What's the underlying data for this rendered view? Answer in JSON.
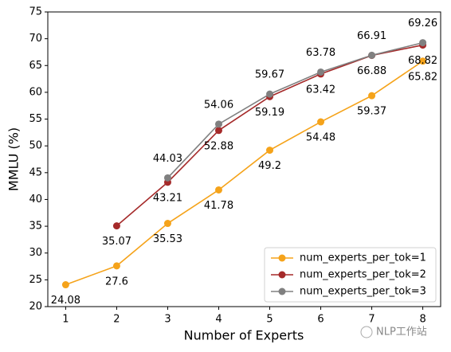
{
  "chart_data": {
    "type": "line",
    "xlabel": "Number of Experts",
    "ylabel": "MMLU (%)",
    "xlim": [
      0.65,
      8.35
    ],
    "ylim": [
      20,
      75
    ],
    "xticks": [
      1,
      2,
      3,
      4,
      5,
      6,
      7,
      8
    ],
    "yticks": [
      20,
      25,
      30,
      35,
      40,
      45,
      50,
      55,
      60,
      65,
      70,
      75
    ],
    "legend": "lower right",
    "series": [
      {
        "name": "num_experts_per_tok=1",
        "color": "#f5a31a",
        "label_side": "below",
        "x": [
          1,
          2,
          3,
          4,
          5,
          6,
          7,
          8
        ],
        "values": [
          24.08,
          27.6,
          35.53,
          41.78,
          49.2,
          54.48,
          59.37,
          65.82
        ]
      },
      {
        "name": "num_experts_per_tok=2",
        "color": "#a52a2a",
        "label_side": "below",
        "x": [
          2,
          3,
          4,
          5,
          6,
          7,
          8
        ],
        "values": [
          35.07,
          43.21,
          52.88,
          59.19,
          63.42,
          66.88,
          68.82
        ]
      },
      {
        "name": "num_experts_per_tok=3",
        "color": "#808080",
        "label_side": "above",
        "x": [
          3,
          4,
          5,
          6,
          7,
          8
        ],
        "values": [
          44.03,
          54.06,
          59.67,
          63.78,
          66.91,
          69.26
        ]
      }
    ],
    "watermark": "NLP工作站"
  }
}
